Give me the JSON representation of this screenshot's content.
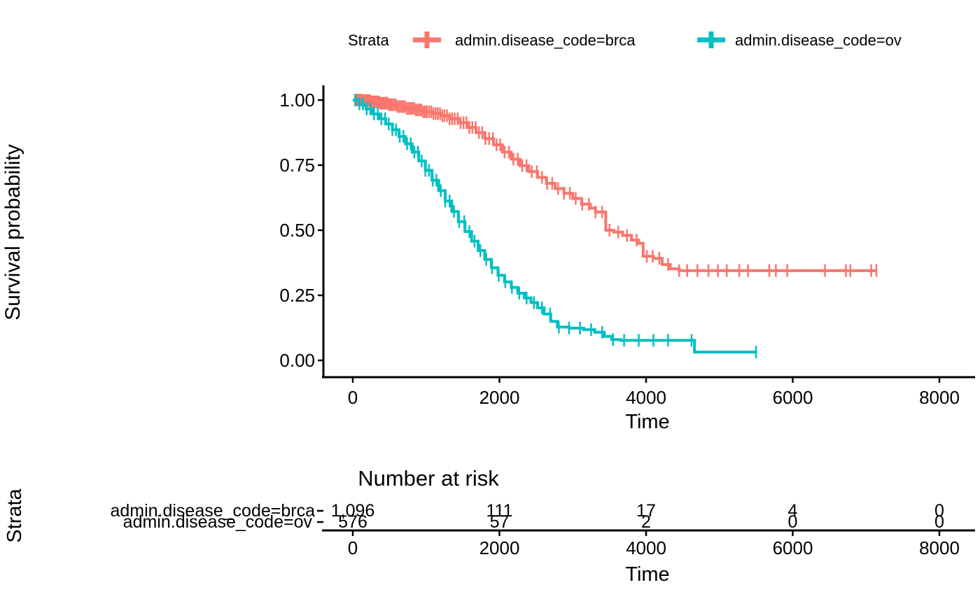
{
  "legend": {
    "title": "Strata",
    "entries": [
      {
        "label": "admin.disease_code=brca",
        "color": "#F8766D"
      },
      {
        "label": "admin.disease_code=ov",
        "color": "#00BFC4"
      }
    ]
  },
  "chart_data": {
    "type": "line",
    "subtype": "kaplan-meier-step-survival",
    "title": "",
    "xlabel": "Time",
    "ylabel": "Survival probability",
    "xlim": [
      0,
      8400
    ],
    "ylim": [
      0,
      1
    ],
    "grid": "off",
    "legend_position": "top",
    "x_ticks": [
      "0",
      "2000",
      "4000",
      "6000",
      "8000"
    ],
    "x_tick_values": [
      0,
      2000,
      4000,
      6000,
      8000
    ],
    "y_ticks": [
      "1.00",
      "0.75",
      "0.50",
      "0.25",
      "0.00"
    ],
    "y_tick_values": [
      1.0,
      0.75,
      0.5,
      0.25,
      0.0
    ],
    "series": [
      {
        "name": "admin.disease_code=brca",
        "color": "#F8766D",
        "points": [
          [
            0,
            1.0
          ],
          [
            120,
            0.998
          ],
          [
            240,
            0.993
          ],
          [
            360,
            0.988
          ],
          [
            480,
            0.982
          ],
          [
            600,
            0.975
          ],
          [
            720,
            0.968
          ],
          [
            840,
            0.962
          ],
          [
            960,
            0.955
          ],
          [
            1080,
            0.948
          ],
          [
            1200,
            0.94
          ],
          [
            1320,
            0.928
          ],
          [
            1440,
            0.913
          ],
          [
            1560,
            0.895
          ],
          [
            1680,
            0.875
          ],
          [
            1800,
            0.852
          ],
          [
            1920,
            0.828
          ],
          [
            2040,
            0.8
          ],
          [
            2160,
            0.773
          ],
          [
            2280,
            0.748
          ],
          [
            2400,
            0.725
          ],
          [
            2520,
            0.703
          ],
          [
            2640,
            0.68
          ],
          [
            2760,
            0.66
          ],
          [
            2880,
            0.642
          ],
          [
            3000,
            0.622
          ],
          [
            3120,
            0.6
          ],
          [
            3240,
            0.585
          ],
          [
            3310,
            0.57
          ],
          [
            3450,
            0.5
          ],
          [
            3560,
            0.493
          ],
          [
            3680,
            0.48
          ],
          [
            3800,
            0.462
          ],
          [
            3900,
            0.45
          ],
          [
            3960,
            0.4
          ],
          [
            4100,
            0.392
          ],
          [
            4220,
            0.368
          ],
          [
            4330,
            0.352
          ],
          [
            4450,
            0.345
          ],
          [
            7140,
            0.345
          ]
        ],
        "censor_times": [
          30,
          55,
          75,
          95,
          115,
          135,
          155,
          175,
          195,
          215,
          235,
          255,
          275,
          295,
          315,
          335,
          355,
          375,
          395,
          415,
          435,
          455,
          475,
          495,
          515,
          535,
          560,
          585,
          610,
          635,
          660,
          685,
          710,
          735,
          760,
          785,
          810,
          835,
          860,
          885,
          910,
          935,
          960,
          985,
          1010,
          1040,
          1070,
          1100,
          1130,
          1160,
          1190,
          1220,
          1250,
          1285,
          1320,
          1355,
          1390,
          1430,
          1470,
          1510,
          1550,
          1590,
          1630,
          1675,
          1720,
          1765,
          1810,
          1860,
          1910,
          1960,
          2010,
          2070,
          2130,
          2190,
          2250,
          2310,
          2370,
          2440,
          2510,
          2580,
          2650,
          2720,
          2800,
          2880,
          2960,
          3040,
          3130,
          3220,
          3310,
          3400,
          3500,
          3620,
          3740,
          3870,
          4010,
          4090,
          4180,
          4300,
          4450,
          4560,
          4700,
          4850,
          4980,
          5100,
          5270,
          5390,
          5680,
          5770,
          5925,
          6440,
          6725,
          6785,
          7070,
          7140
        ]
      },
      {
        "name": "admin.disease_code=ov",
        "color": "#00BFC4",
        "points": [
          [
            0,
            1.0
          ],
          [
            90,
            0.985
          ],
          [
            180,
            0.966
          ],
          [
            270,
            0.947
          ],
          [
            360,
            0.928
          ],
          [
            450,
            0.908
          ],
          [
            540,
            0.886
          ],
          [
            630,
            0.86
          ],
          [
            720,
            0.832
          ],
          [
            810,
            0.8
          ],
          [
            900,
            0.766
          ],
          [
            990,
            0.73
          ],
          [
            1080,
            0.692
          ],
          [
            1170,
            0.652
          ],
          [
            1260,
            0.612
          ],
          [
            1350,
            0.572
          ],
          [
            1440,
            0.533
          ],
          [
            1530,
            0.495
          ],
          [
            1620,
            0.458
          ],
          [
            1710,
            0.422
          ],
          [
            1800,
            0.388
          ],
          [
            1890,
            0.356
          ],
          [
            1980,
            0.327
          ],
          [
            2070,
            0.302
          ],
          [
            2160,
            0.28
          ],
          [
            2250,
            0.258
          ],
          [
            2340,
            0.24
          ],
          [
            2430,
            0.222
          ],
          [
            2520,
            0.202
          ],
          [
            2610,
            0.178
          ],
          [
            2700,
            0.15
          ],
          [
            2790,
            0.128
          ],
          [
            2950,
            0.124
          ],
          [
            3150,
            0.118
          ],
          [
            3300,
            0.108
          ],
          [
            3430,
            0.092
          ],
          [
            3530,
            0.08
          ],
          [
            3650,
            0.077
          ],
          [
            4620,
            0.077
          ],
          [
            4660,
            0.032
          ],
          [
            5500,
            0.032
          ]
        ],
        "censor_times": [
          40,
          90,
          140,
          190,
          240,
          290,
          340,
          390,
          440,
          490,
          540,
          590,
          640,
          690,
          740,
          790,
          840,
          890,
          940,
          990,
          1040,
          1090,
          1140,
          1200,
          1260,
          1320,
          1380,
          1450,
          1520,
          1590,
          1660,
          1740,
          1820,
          1900,
          1990,
          2080,
          2170,
          2270,
          2370,
          2470,
          2580,
          2690,
          2810,
          2950,
          3100,
          3250,
          3400,
          3550,
          3700,
          3900,
          4100,
          4300,
          4620,
          5500
        ]
      }
    ],
    "risk_table": {
      "title": "Number at risk",
      "ylabel": "Strata",
      "xlabel": "Time",
      "x_ticks": [
        "0",
        "2000",
        "4000",
        "6000",
        "8000"
      ],
      "rows": [
        {
          "label": "admin.disease_code=brca",
          "color": "#F8766D",
          "values": [
            "1,096",
            "111",
            "17",
            "4",
            "0"
          ]
        },
        {
          "label": "admin.disease_code=ov",
          "color": "#00BFC4",
          "values": [
            "576",
            "57",
            "2",
            "0",
            "0"
          ]
        }
      ]
    }
  }
}
